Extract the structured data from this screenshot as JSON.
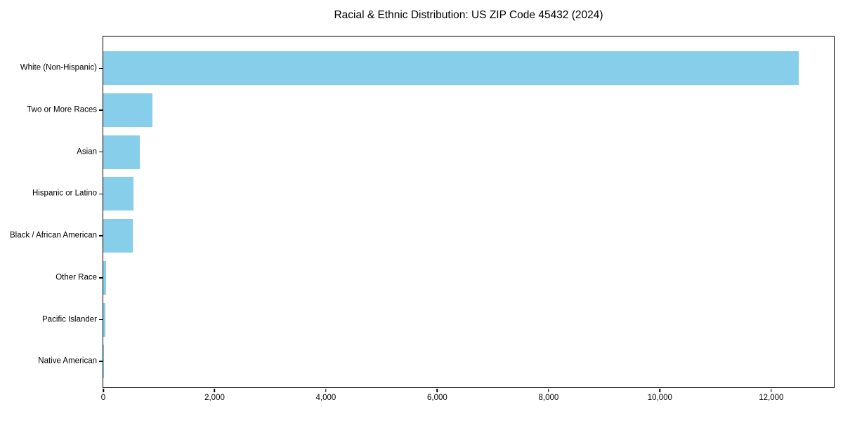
{
  "chart_data": {
    "type": "bar",
    "orientation": "horizontal",
    "title": "Racial & Ethnic Distribution: US ZIP Code 45432 (2024)",
    "categories": [
      "White (Non-Hispanic)",
      "Two or More Races",
      "Asian",
      "Hispanic or Latino",
      "Black / African American",
      "Other Race",
      "Pacific Islander",
      "Native American"
    ],
    "values": [
      12490,
      880,
      650,
      540,
      525,
      45,
      40,
      10
    ],
    "xlabel": "",
    "ylabel": "",
    "xlim": [
      0,
      13125
    ],
    "xticks": [
      0,
      2000,
      4000,
      6000,
      8000,
      10000,
      12000
    ],
    "xtick_labels": [
      "0",
      "2,000",
      "4,000",
      "6,000",
      "8,000",
      "10,000",
      "12,000"
    ],
    "bar_color": "#87CEEB",
    "spine_color": "#000000",
    "background_color": "#ffffff",
    "grid": false,
    "legend": null
  }
}
